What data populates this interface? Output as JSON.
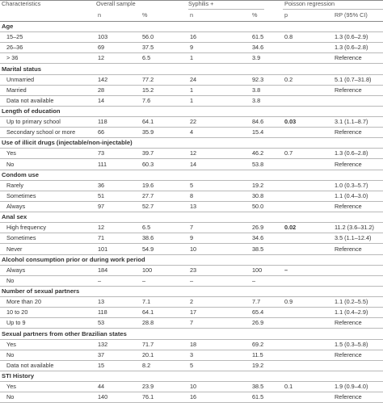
{
  "headers": {
    "characteristics": "Characteristics",
    "overall_sample": "Overall sample",
    "syphilis": "Syphilis +",
    "poisson": "Poisson regression",
    "n1": "n",
    "pct1": "%",
    "n2": "n",
    "pct2": "%",
    "p": "p",
    "rp": "RP (95% CI)"
  },
  "rows": [
    {
      "type": "section",
      "label": "Age"
    },
    {
      "type": "sub",
      "label": "15–25",
      "n": "103",
      "pct": "56.0",
      "sn": "16",
      "spct": "61.5",
      "p": "0.8",
      "rp": "1.3 (0.6–2.9)"
    },
    {
      "type": "sub",
      "label": "26–36",
      "n": "69",
      "pct": "37.5",
      "sn": "9",
      "spct": "34.6",
      "p": "",
      "rp": "1.3 (0.6–2.8)"
    },
    {
      "type": "sub",
      "label": "> 36",
      "n": "12",
      "pct": "6.5",
      "sn": "1",
      "spct": "3.9",
      "p": "",
      "rp": "Reference"
    },
    {
      "type": "section",
      "label": "Marital status"
    },
    {
      "type": "sub",
      "label": "Unmarried",
      "n": "142",
      "pct": "77.2",
      "sn": "24",
      "spct": "92.3",
      "p": "0.2",
      "rp": "5.1 (0.7–31.8)"
    },
    {
      "type": "sub",
      "label": "Married",
      "n": "28",
      "pct": "15.2",
      "sn": "1",
      "spct": "3.8",
      "p": "",
      "rp": "Reference"
    },
    {
      "type": "sub",
      "label": "Data not available",
      "n": "14",
      "pct": "7.6",
      "sn": "1",
      "spct": "3.8",
      "p": "",
      "rp": ""
    },
    {
      "type": "section",
      "label": "Length of education"
    },
    {
      "type": "sub",
      "label": "Up to primary school",
      "n": "118",
      "pct": "64.1",
      "sn": "22",
      "spct": "84.6",
      "p": "0.03",
      "p_bold": true,
      "rp": "3.1 (1.1–8.7)"
    },
    {
      "type": "sub",
      "label": "Secondary school or more",
      "n": "66",
      "pct": "35.9",
      "sn": "4",
      "spct": "15.4",
      "p": "",
      "rp": "Reference"
    },
    {
      "type": "section",
      "label": "Use of illicit drugs (injectable/non-injectable)"
    },
    {
      "type": "sub",
      "label": "Yes",
      "n": "73",
      "pct": "39.7",
      "sn": "12",
      "spct": "46.2",
      "p": "0.7",
      "rp": "1.3 (0.6–2.8)"
    },
    {
      "type": "sub",
      "label": "No",
      "n": "111",
      "pct": "60.3",
      "sn": "14",
      "spct": "53.8",
      "p": "",
      "rp": "Reference"
    },
    {
      "type": "section",
      "label": "Condom use"
    },
    {
      "type": "sub",
      "label": "Rarely",
      "n": "36",
      "pct": "19.6",
      "sn": "5",
      "spct": "19.2",
      "p": "",
      "rp": "1.0 (0.3–5.7)"
    },
    {
      "type": "sub",
      "label": "Sometimes",
      "n": "51",
      "pct": "27.7",
      "sn": "8",
      "spct": "30.8",
      "p": "",
      "rp": "1.1 (0.4–3.0)"
    },
    {
      "type": "sub",
      "label": "Always",
      "n": "97",
      "pct": "52.7",
      "sn": "13",
      "spct": "50.0",
      "p": "",
      "rp": "Reference"
    },
    {
      "type": "section",
      "label": "Anal sex"
    },
    {
      "type": "sub",
      "label": "High frequency",
      "n": "12",
      "pct": "6.5",
      "sn": "7",
      "spct": "26.9",
      "p": "0.02",
      "p_bold": true,
      "rp": "11.2 (3.6–31.2)"
    },
    {
      "type": "sub",
      "label": "Sometimes",
      "n": "71",
      "pct": "38.6",
      "sn": "9",
      "spct": "34.6",
      "p": "",
      "rp": "3.5 (1.1–12.4)"
    },
    {
      "type": "sub",
      "label": "Never",
      "n": "101",
      "pct": "54.9",
      "sn": "10",
      "spct": "38.5",
      "p": "",
      "rp": "Reference"
    },
    {
      "type": "section",
      "label": "Alcohol consumption prior or during work period"
    },
    {
      "type": "sub",
      "label": "Always",
      "n": "184",
      "pct": "100",
      "sn": "23",
      "spct": "100",
      "p": "–",
      "p_bold": true,
      "rp": ""
    },
    {
      "type": "sub",
      "label": "No",
      "n": "–",
      "pct": "–",
      "sn": "–",
      "spct": "–",
      "p": "",
      "rp": ""
    },
    {
      "type": "section",
      "label": "Number of sexual partners"
    },
    {
      "type": "sub",
      "label": "More than 20",
      "n": "13",
      "pct": "7.1",
      "sn": "2",
      "spct": "7.7",
      "p": "0.9",
      "rp": "1.1 (0.2–5.5)"
    },
    {
      "type": "sub",
      "label": "10 to 20",
      "n": "118",
      "pct": "64.1",
      "sn": "17",
      "spct": "65.4",
      "p": "",
      "rp": "1.1 (0.4–2.9)"
    },
    {
      "type": "sub",
      "label": "Up to 9",
      "n": "53",
      "pct": "28.8",
      "sn": "7",
      "spct": "26.9",
      "p": "",
      "rp": "Reference"
    },
    {
      "type": "section",
      "label": "Sexual partners from other Brazilian states"
    },
    {
      "type": "sub",
      "label": "Yes",
      "n": "132",
      "pct": "71.7",
      "sn": "18",
      "spct": "69.2",
      "p": "",
      "rp": "1.5 (0.3–5.8)"
    },
    {
      "type": "sub",
      "label": "No",
      "n": "37",
      "pct": "20.1",
      "sn": "3",
      "spct": "11.5",
      "p": "",
      "rp": "Reference"
    },
    {
      "type": "sub",
      "label": "Data not available",
      "n": "15",
      "pct": "8.2",
      "sn": "5",
      "spct": "19.2",
      "p": "",
      "rp": ""
    },
    {
      "type": "section",
      "label": "STI History"
    },
    {
      "type": "sub",
      "label": "Yes",
      "n": "44",
      "pct": "23.9",
      "sn": "10",
      "spct": "38.5",
      "p": "0.1",
      "rp": "1.9 (0.9–4.0)"
    },
    {
      "type": "sub",
      "label": "No",
      "n": "140",
      "pct": "76.1",
      "sn": "16",
      "spct": "61.5",
      "p": "",
      "rp": "Reference"
    }
  ]
}
